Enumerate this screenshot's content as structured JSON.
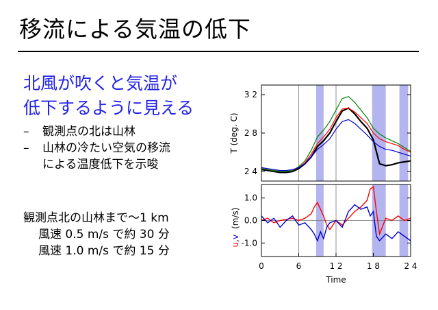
{
  "slide": {
    "title": "移流による気温の低下",
    "headline": [
      "北風が吹くと気温が",
      "低下するように見える"
    ],
    "bullets": [
      "観測点の北は山林",
      "山林の冷たい空気の移流",
      "による温度低下を示唆"
    ],
    "distance": {
      "heading": "観測点北の山林まで〜1 km",
      "lines": [
        "風速 0.5 m/s で約 30 分",
        "風速 1.0 m/s で約 15 分"
      ]
    }
  },
  "chart_data": [
    {
      "type": "line",
      "ylabel": "T (deg. C)",
      "xlim": [
        0,
        24
      ],
      "ylim": [
        23,
        33
      ],
      "yticks": [
        24,
        28,
        32
      ],
      "shaded_x": [
        [
          8.8,
          10.0
        ],
        [
          17.8,
          20.0
        ],
        [
          22.2,
          23.6
        ]
      ],
      "vlines": [
        6,
        12
      ],
      "series": [
        {
          "color": "#000000",
          "x": [
            0,
            1,
            2,
            3,
            4,
            5,
            6,
            7,
            8,
            9,
            10,
            11,
            12,
            13,
            14,
            15,
            16,
            17,
            18,
            19,
            20,
            21,
            22,
            23,
            24
          ],
          "y": [
            24.2,
            24.1,
            24.0,
            23.9,
            23.9,
            24.0,
            24.3,
            24.8,
            25.5,
            26.6,
            27.2,
            28.0,
            29.2,
            30.3,
            30.6,
            30.0,
            29.2,
            28.5,
            27.3,
            24.8,
            24.6,
            24.7,
            24.9,
            25.0,
            25.1
          ]
        },
        {
          "color": "#ff0000",
          "x": [
            0,
            1,
            2,
            3,
            4,
            5,
            6,
            7,
            8,
            9,
            10,
            11,
            12,
            13,
            14,
            15,
            16,
            17,
            18,
            19,
            20,
            21,
            22,
            23,
            24
          ],
          "y": [
            24.3,
            24.2,
            24.1,
            24.0,
            24.0,
            24.1,
            24.4,
            24.9,
            25.8,
            26.9,
            27.6,
            28.4,
            29.6,
            30.5,
            30.6,
            30.2,
            29.6,
            29.0,
            28.0,
            27.4,
            27.1,
            26.9,
            26.7,
            26.3,
            26.0
          ]
        },
        {
          "color": "#008000",
          "x": [
            0,
            1,
            2,
            3,
            4,
            5,
            6,
            7,
            8,
            9,
            10,
            11,
            12,
            13,
            14,
            15,
            16,
            17,
            18,
            19,
            20,
            21,
            22,
            23,
            24
          ],
          "y": [
            24.3,
            24.2,
            24.1,
            24.0,
            24.0,
            24.1,
            24.5,
            25.1,
            26.2,
            27.6,
            28.3,
            29.2,
            30.4,
            31.6,
            31.8,
            31.2,
            30.4,
            29.6,
            28.5,
            27.9,
            27.5,
            27.2,
            26.9,
            26.5,
            26.1
          ]
        },
        {
          "color": "#0000cc",
          "x": [
            0,
            1,
            2,
            3,
            4,
            5,
            6,
            7,
            8,
            9,
            10,
            11,
            12,
            13,
            14,
            15,
            16,
            17,
            18,
            19,
            20,
            21,
            22,
            23,
            24
          ],
          "y": [
            24.4,
            24.3,
            24.2,
            24.1,
            24.1,
            24.2,
            24.4,
            24.8,
            25.5,
            26.3,
            26.8,
            27.4,
            28.4,
            29.2,
            29.4,
            29.0,
            28.4,
            27.8,
            27.1,
            26.6,
            26.3,
            26.2,
            26.0,
            25.8,
            25.6
          ]
        }
      ]
    },
    {
      "type": "line",
      "xlabel": "Time",
      "ylabel": "(m/s)",
      "ylabel_components": [
        {
          "text": "u",
          "color": "#ff0000"
        },
        {
          "text": ",",
          "color": "#000000"
        },
        {
          "text": "v",
          "color": "#0000cc"
        }
      ],
      "xlim": [
        0,
        24
      ],
      "ylim": [
        -1.6,
        1.6
      ],
      "yticks": [
        -1.0,
        0.0,
        1.0
      ],
      "ytick_labels": [
        "-1.0",
        "0.0",
        "1.0"
      ],
      "xticks": [
        0,
        6,
        12,
        18,
        24
      ],
      "xtick_labels": [
        "0",
        "6",
        "12",
        "18",
        "24"
      ],
      "shaded_x": [
        [
          8.8,
          10.0
        ],
        [
          17.8,
          20.0
        ],
        [
          22.2,
          23.6
        ]
      ],
      "vlines": [
        6,
        12
      ],
      "hline": 0,
      "series": [
        {
          "color": "#ff0000",
          "x": [
            0,
            1,
            2,
            3,
            4,
            5,
            6,
            7,
            8,
            8.5,
            9,
            9.5,
            10,
            10.5,
            11,
            12,
            13,
            14,
            15,
            16,
            17,
            17.5,
            18,
            18.5,
            19,
            20,
            21,
            22,
            23,
            24
          ],
          "y": [
            0.0,
            0.1,
            -0.1,
            0.0,
            0.05,
            0.1,
            0.0,
            0.1,
            0.3,
            0.6,
            0.8,
            0.5,
            0.2,
            -0.2,
            -0.4,
            0.0,
            -0.2,
            0.1,
            0.4,
            0.6,
            0.9,
            1.4,
            1.5,
            0.4,
            -0.6,
            0.1,
            0.0,
            0.2,
            0.0,
            0.1
          ]
        },
        {
          "color": "#0000cc",
          "x": [
            0,
            1,
            2,
            3,
            4,
            5,
            6,
            7,
            8,
            8.5,
            9,
            9.5,
            10,
            10.5,
            11,
            12,
            13,
            14,
            15,
            16,
            17,
            17.5,
            18,
            18.5,
            19,
            20,
            21,
            22,
            23,
            24
          ],
          "y": [
            0.2,
            -0.1,
            0.1,
            -0.3,
            0.0,
            0.2,
            -0.2,
            -0.1,
            -0.4,
            -0.6,
            -0.9,
            -0.5,
            -0.8,
            -0.3,
            -0.1,
            0.0,
            -0.3,
            0.4,
            0.7,
            0.5,
            0.6,
            0.2,
            0.4,
            -0.7,
            -0.9,
            -0.6,
            -0.8,
            -0.5,
            -0.7,
            -0.9
          ]
        }
      ]
    }
  ]
}
